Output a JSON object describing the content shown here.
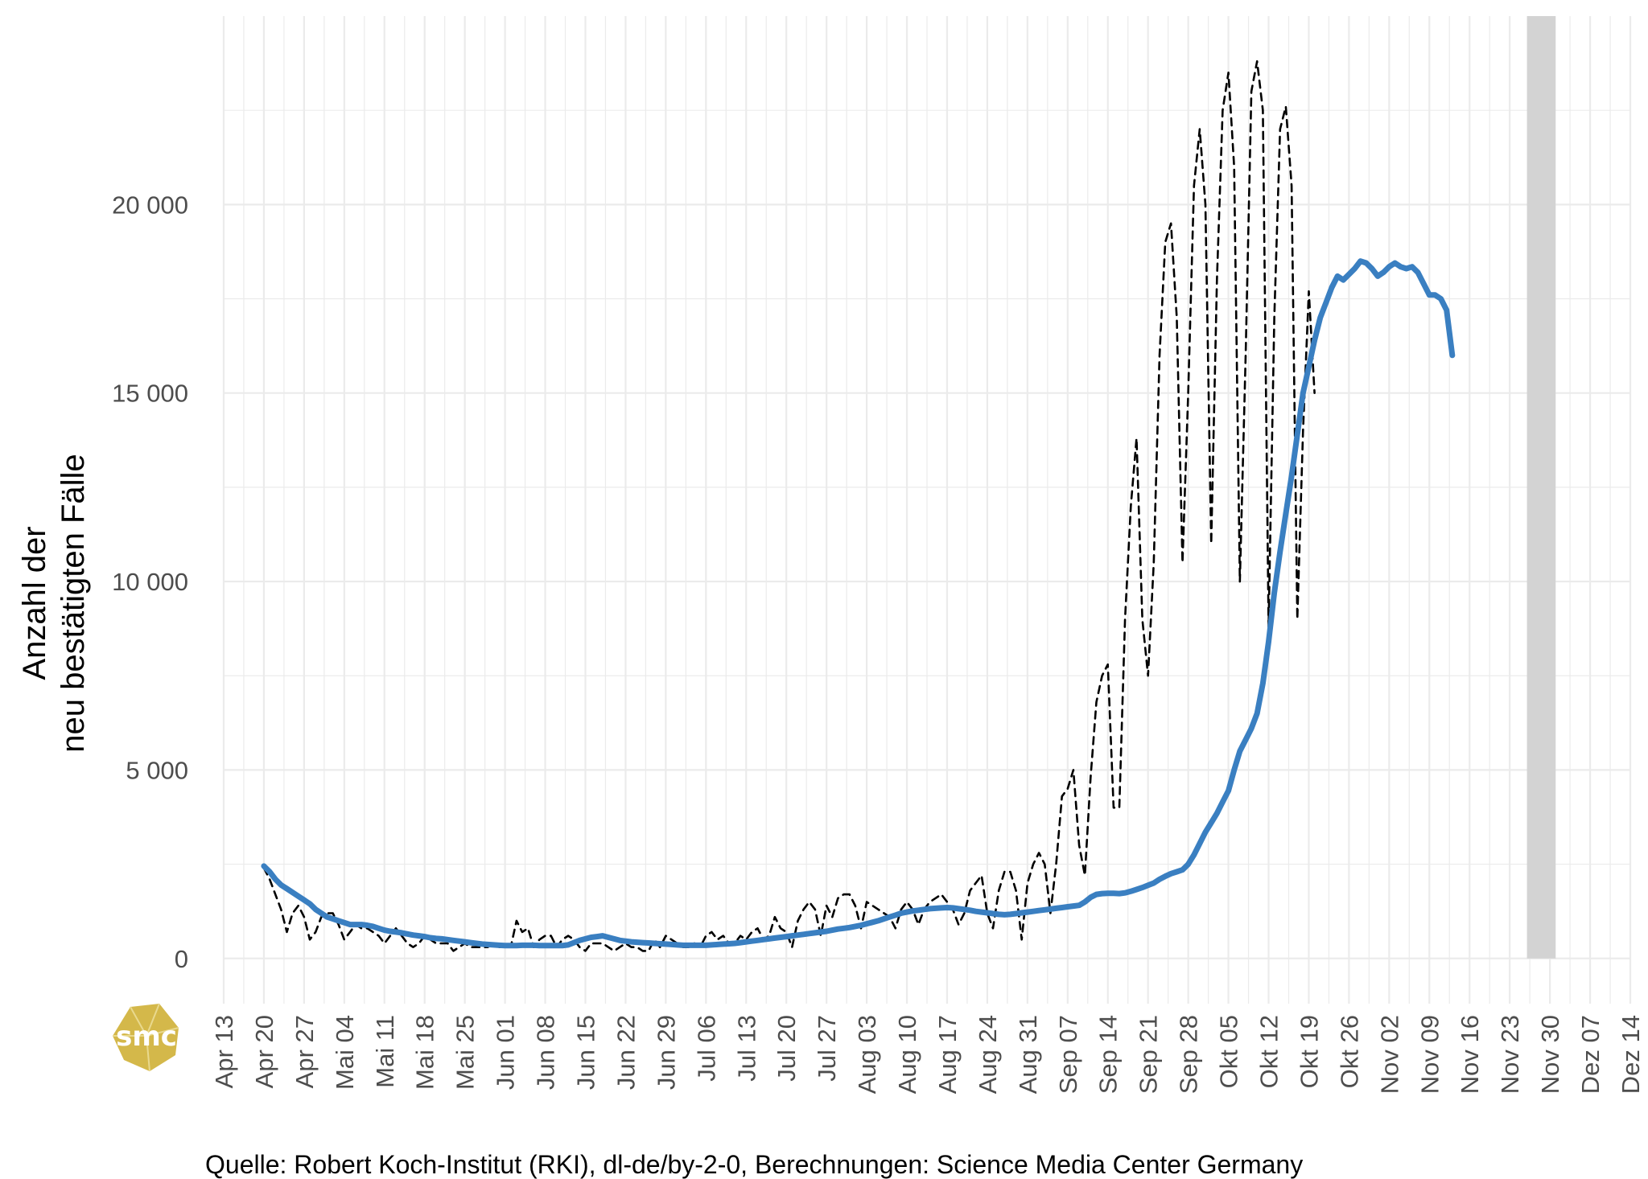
{
  "chart_data": {
    "type": "line",
    "ylabel_lines": [
      "Anzahl der",
      "neu bestätigten Fälle"
    ],
    "y_ticks": [
      0,
      5000,
      10000,
      15000,
      20000
    ],
    "y_tick_labels": [
      "0",
      "5 000",
      "10 000",
      "15 000",
      "20 000"
    ],
    "ylim": [
      -1200,
      25000
    ],
    "x_start": "2020-04-13",
    "x_end": "2020-12-14",
    "x_tick_labels": [
      "Apr 13",
      "Apr 20",
      "Apr 27",
      "Mai 04",
      "Mai 11",
      "Mai 18",
      "Mai 25",
      "Jun 01",
      "Jun 08",
      "Jun 15",
      "Jun 22",
      "Jun 29",
      "Jul 06",
      "Jul 13",
      "Jul 20",
      "Jul 27",
      "Aug 03",
      "Aug 10",
      "Aug 17",
      "Aug 24",
      "Aug 31",
      "Sep 07",
      "Sep 14",
      "Sep 21",
      "Sep 28",
      "Okt 05",
      "Okt 12",
      "Okt 19",
      "Okt 26",
      "Nov 02",
      "Nov 09",
      "Nov 16",
      "Nov 23",
      "Nov 30",
      "Dez 07",
      "Dez 14"
    ],
    "grid": true,
    "shaded_region": {
      "from": "2020-11-26",
      "to": "2020-12-01",
      "color": "#d3d3d3"
    },
    "series": [
      {
        "style": "dashed",
        "color": "#000000",
        "x_start": "2020-04-20",
        "values": [
          2400,
          2100,
          1700,
          1300,
          700,
          1200,
          1400,
          1100,
          500,
          700,
          1100,
          1200,
          1200,
          900,
          500,
          700,
          900,
          800,
          800,
          700,
          600,
          400,
          600,
          800,
          600,
          400,
          300,
          400,
          600,
          500,
          400,
          400,
          400,
          200,
          300,
          400,
          300,
          300,
          300,
          300,
          400,
          300,
          300,
          300,
          1000,
          700,
          800,
          300,
          500,
          600,
          600,
          300,
          500,
          600,
          500,
          300,
          200,
          400,
          400,
          400,
          300,
          200,
          300,
          400,
          300,
          300,
          200,
          200,
          500,
          300,
          600,
          500,
          400,
          300,
          300,
          400,
          300,
          600,
          700,
          500,
          600,
          400,
          400,
          600,
          500,
          700,
          800,
          500,
          600,
          1100,
          800,
          700,
          300,
          1000,
          1300,
          1500,
          1300,
          600,
          1400,
          1100,
          1600,
          1700,
          1700,
          1400,
          800,
          1500,
          1400,
          1300,
          1200,
          1100,
          800,
          1300,
          1500,
          1300,
          900,
          1300,
          1500,
          1600,
          1700,
          1500,
          1300,
          900,
          1200,
          1800,
          2000,
          2200,
          1200,
          800,
          1800,
          2300,
          2300,
          1800,
          500,
          2000,
          2500,
          2800,
          2500,
          1200,
          2500,
          4300,
          4500,
          5000,
          3000,
          2200,
          4800,
          6800,
          7500,
          7800,
          4000,
          4000,
          9000,
          12000,
          13800,
          9000,
          7500,
          10500,
          16000,
          19000,
          19500,
          17000,
          10500,
          15000,
          20500,
          22000,
          20000,
          11000,
          18000,
          22500,
          23500,
          21000,
          10000,
          16000,
          23000,
          23800,
          22500,
          8800,
          17000,
          22000,
          22600,
          20500,
          9000,
          14000,
          17700,
          15000
        ],
        "label": ""
      },
      {
        "style": "solid",
        "color": "#3a7fc1",
        "x_start": "2020-04-20",
        "values": [
          2450,
          2300,
          2100,
          1950,
          1850,
          1750,
          1650,
          1550,
          1450,
          1300,
          1200,
          1100,
          1050,
          1000,
          950,
          900,
          900,
          900,
          880,
          850,
          800,
          750,
          720,
          700,
          680,
          650,
          620,
          600,
          580,
          550,
          530,
          520,
          500,
          480,
          460,
          440,
          420,
          400,
          380,
          370,
          360,
          350,
          340,
          340,
          340,
          350,
          350,
          350,
          340,
          340,
          340,
          340,
          340,
          360,
          420,
          480,
          520,
          560,
          580,
          600,
          560,
          520,
          480,
          460,
          440,
          430,
          420,
          410,
          400,
          390,
          380,
          370,
          360,
          350,
          350,
          350,
          350,
          350,
          360,
          370,
          380,
          390,
          400,
          420,
          440,
          460,
          480,
          500,
          520,
          540,
          560,
          580,
          600,
          620,
          640,
          660,
          680,
          700,
          720,
          750,
          780,
          800,
          820,
          850,
          880,
          920,
          960,
          1000,
          1050,
          1100,
          1150,
          1200,
          1230,
          1260,
          1280,
          1300,
          1320,
          1330,
          1340,
          1350,
          1340,
          1320,
          1300,
          1280,
          1250,
          1230,
          1210,
          1190,
          1170,
          1160,
          1170,
          1190,
          1210,
          1230,
          1250,
          1270,
          1290,
          1310,
          1330,
          1350,
          1370,
          1390,
          1410,
          1500,
          1620,
          1700,
          1720,
          1730,
          1730,
          1720,
          1740,
          1780,
          1830,
          1880,
          1940,
          2000,
          2100,
          2180,
          2250,
          2300,
          2350,
          2500,
          2750,
          3050,
          3350,
          3600,
          3850,
          4150,
          4450,
          5000,
          5500,
          5800,
          6100,
          6500,
          7300,
          8400,
          9700,
          10800,
          11800,
          12800,
          13900,
          15000,
          15700,
          16400,
          17000,
          17400,
          17800,
          18100,
          18000,
          18150,
          18300,
          18500,
          18450,
          18300,
          18100,
          18200,
          18350,
          18450,
          18350,
          18300,
          18350,
          18200,
          17900,
          17600,
          17600,
          17500,
          17200,
          16000
        ],
        "label": ""
      }
    ]
  },
  "source_text": "Quelle: Robert Koch-Institut (RKI), dl-de/by-2-0, Berechnungen: Science Media Center Germany",
  "logo_text": "smc",
  "logo_color": "#d4b84a"
}
